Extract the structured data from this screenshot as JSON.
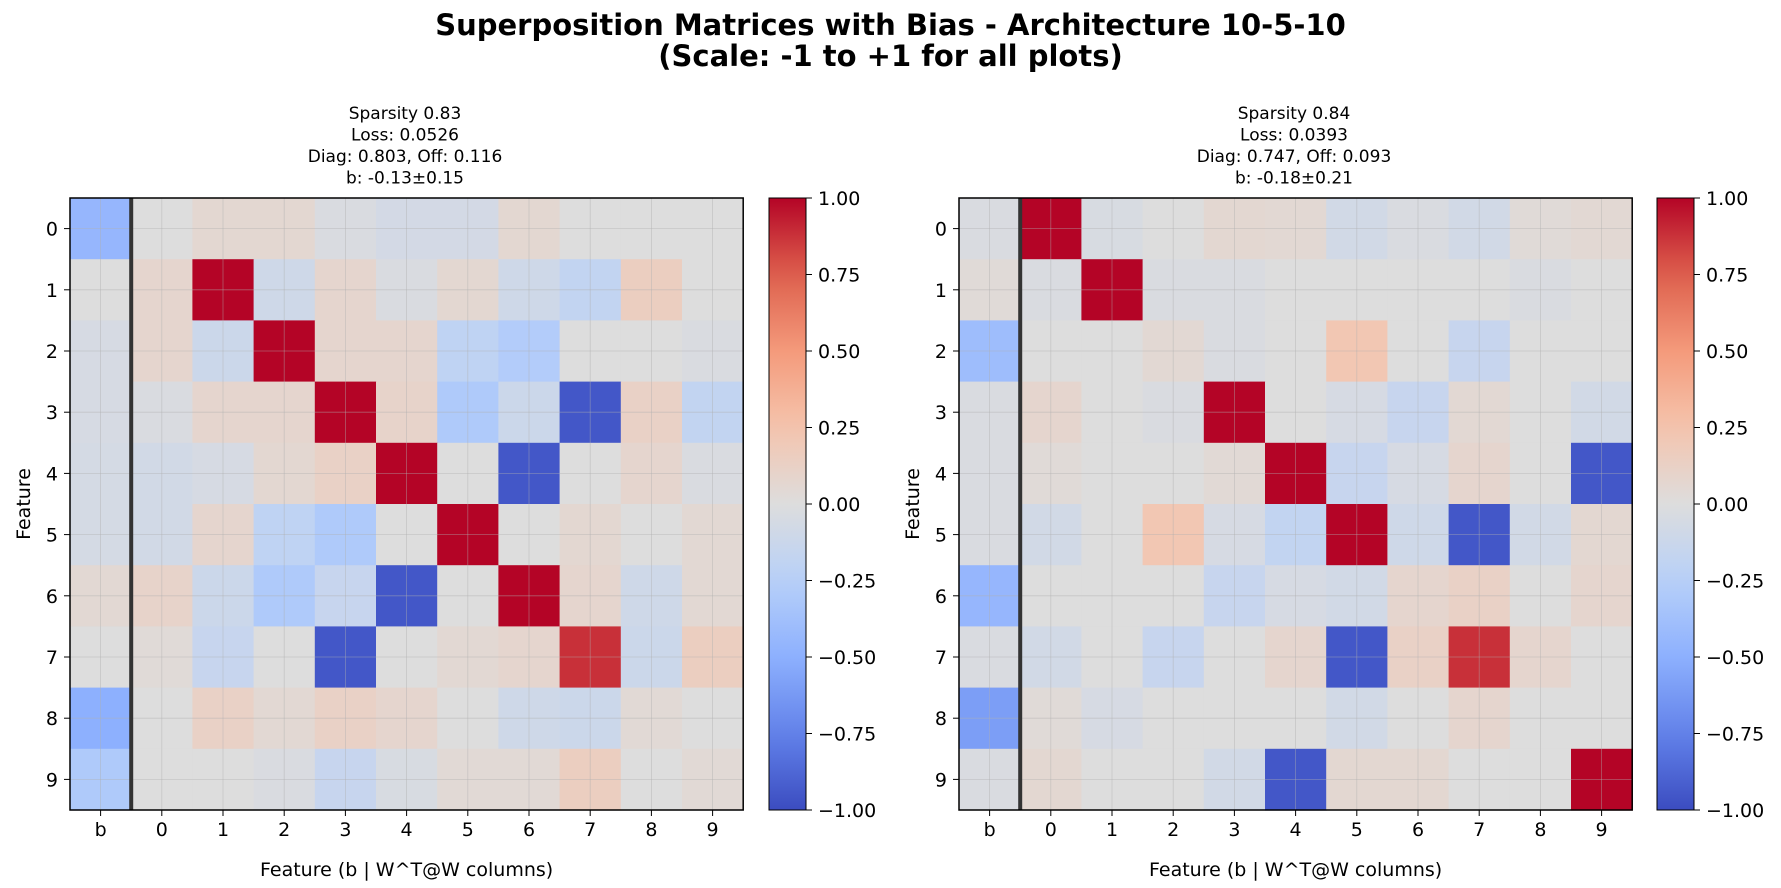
{
  "figure": {
    "title_line1": "Superposition Matrices with Bias - Architecture 10-5-10",
    "title_line2": "(Scale: -1 to +1 for all plots)"
  },
  "chart_data": [
    {
      "type": "heatmap",
      "title_lines": [
        "Sparsity 0.83",
        "Loss: 0.0526",
        "Diag: 0.803, Off: 0.116",
        "b: -0.13±0.15"
      ],
      "xlabel": "Feature (b | W^T@W columns)",
      "ylabel": "Feature",
      "x_categories": [
        "b",
        "0",
        "1",
        "2",
        "3",
        "4",
        "5",
        "6",
        "7",
        "8",
        "9"
      ],
      "y_categories": [
        "0",
        "1",
        "2",
        "3",
        "4",
        "5",
        "6",
        "7",
        "8",
        "9"
      ],
      "colormap": "coolwarm",
      "clim": [
        -1,
        1
      ],
      "colorbar_ticks": [
        "1.00",
        "0.75",
        "0.50",
        "0.25",
        "0.00",
        "−0.25",
        "−0.50",
        "−0.75",
        "−1.00"
      ],
      "values": [
        [
          -0.45,
          0.0,
          0.06,
          0.06,
          -0.03,
          -0.07,
          -0.07,
          0.06,
          0.0,
          0.0,
          0.0
        ],
        [
          0.0,
          0.08,
          1.0,
          -0.1,
          0.08,
          -0.03,
          0.06,
          -0.1,
          -0.18,
          0.15,
          0.0
        ],
        [
          -0.05,
          0.08,
          -0.12,
          1.0,
          0.08,
          0.08,
          -0.2,
          -0.28,
          0.0,
          0.0,
          -0.03
        ],
        [
          -0.05,
          -0.03,
          0.08,
          0.08,
          1.0,
          0.1,
          -0.3,
          -0.12,
          -0.95,
          0.12,
          -0.18
        ],
        [
          -0.06,
          -0.08,
          -0.05,
          0.06,
          0.12,
          1.0,
          0.0,
          -0.95,
          0.0,
          0.08,
          -0.03
        ],
        [
          -0.06,
          -0.08,
          0.08,
          -0.2,
          -0.3,
          0.0,
          1.0,
          0.0,
          0.06,
          0.0,
          0.05
        ],
        [
          0.05,
          0.1,
          -0.12,
          -0.3,
          -0.15,
          -0.95,
          0.0,
          1.0,
          0.08,
          -0.1,
          0.05
        ],
        [
          0.0,
          0.03,
          -0.15,
          0.0,
          -0.95,
          0.0,
          0.05,
          0.08,
          0.88,
          -0.12,
          0.15
        ],
        [
          -0.5,
          0.0,
          0.12,
          0.05,
          0.12,
          0.08,
          0.0,
          -0.1,
          -0.12,
          0.04,
          0.0
        ],
        [
          -0.3,
          0.0,
          0.0,
          -0.03,
          -0.15,
          -0.04,
          0.04,
          0.04,
          0.15,
          0.0,
          0.04
        ]
      ]
    },
    {
      "type": "heatmap",
      "title_lines": [
        "Sparsity 0.84",
        "Loss: 0.0393",
        "Diag: 0.747, Off: 0.093",
        "b: -0.18±0.21"
      ],
      "xlabel": "Feature (b | W^T@W columns)",
      "ylabel": "Feature",
      "x_categories": [
        "b",
        "0",
        "1",
        "2",
        "3",
        "4",
        "5",
        "6",
        "7",
        "8",
        "9"
      ],
      "y_categories": [
        "0",
        "1",
        "2",
        "3",
        "4",
        "5",
        "6",
        "7",
        "8",
        "9"
      ],
      "colormap": "coolwarm",
      "clim": [
        -1,
        1
      ],
      "colorbar_ticks": [
        "1.00",
        "0.75",
        "0.50",
        "0.25",
        "0.00",
        "−0.25",
        "−0.50",
        "−0.75",
        "−1.00"
      ],
      "values": [
        [
          -0.03,
          1.0,
          -0.04,
          0.0,
          0.06,
          0.05,
          -0.08,
          -0.03,
          -0.08,
          0.03,
          0.05
        ],
        [
          0.03,
          -0.03,
          1.0,
          -0.03,
          -0.03,
          0.0,
          0.0,
          0.0,
          0.0,
          -0.03,
          0.0
        ],
        [
          -0.4,
          0.0,
          0.0,
          0.05,
          -0.03,
          0.0,
          0.22,
          0.0,
          -0.15,
          0.0,
          0.0
        ],
        [
          -0.03,
          0.08,
          0.0,
          -0.03,
          1.0,
          0.0,
          -0.05,
          -0.15,
          0.05,
          0.0,
          -0.08
        ],
        [
          -0.03,
          0.03,
          0.0,
          0.0,
          0.04,
          1.0,
          -0.15,
          -0.05,
          0.08,
          0.0,
          -0.95
        ],
        [
          -0.03,
          -0.08,
          0.0,
          0.22,
          -0.05,
          -0.18,
          1.0,
          -0.1,
          -0.95,
          -0.08,
          0.06
        ],
        [
          -0.45,
          0.0,
          0.0,
          0.0,
          -0.15,
          -0.05,
          -0.08,
          0.08,
          0.12,
          0.0,
          0.08
        ],
        [
          -0.03,
          -0.08,
          0.0,
          -0.15,
          0.0,
          0.08,
          -0.95,
          0.12,
          0.88,
          0.08,
          0.0
        ],
        [
          -0.6,
          0.03,
          -0.05,
          0.0,
          0.0,
          0.0,
          -0.08,
          0.0,
          0.08,
          0.0,
          0.0
        ],
        [
          -0.03,
          0.06,
          0.0,
          0.0,
          -0.08,
          -0.95,
          0.06,
          0.06,
          0.0,
          0.0,
          1.0
        ]
      ]
    }
  ]
}
